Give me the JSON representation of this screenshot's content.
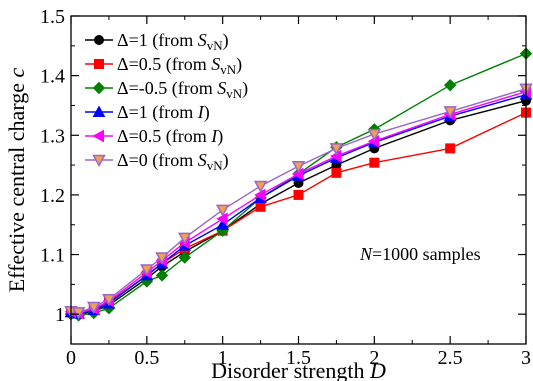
{
  "chart_data": {
    "type": "line",
    "xlabel": "Disorder strength D",
    "ylabel": "Effective central charge c",
    "xlim": [
      0,
      3
    ],
    "ylim": [
      0.95,
      1.5
    ],
    "x_ticks": [
      "0",
      "0.5",
      "1",
      "1.5",
      "2",
      "2.5",
      "3"
    ],
    "y_ticks": [
      "1",
      "1.1",
      "1.2",
      "1.3",
      "1.4",
      "1.5"
    ],
    "annotation": "N=1000 samples",
    "legend_position": "top-left",
    "grid": false,
    "series": [
      {
        "name": "Δ=1 (from SvN)",
        "color": "#000000",
        "marker": "circle",
        "x": [
          0,
          0.05,
          0.15,
          0.25,
          0.5,
          0.6,
          0.75,
          1.0,
          1.25,
          1.5,
          1.75,
          2.0,
          2.5,
          3.0
        ],
        "y": [
          1.003,
          1.0,
          1.005,
          1.015,
          1.06,
          1.08,
          1.105,
          1.14,
          1.185,
          1.22,
          1.25,
          1.278,
          1.325,
          1.358
        ]
      },
      {
        "name": "Δ=0.5 (from SvN)",
        "color": "#ff0000",
        "marker": "square",
        "x": [
          0,
          0.05,
          0.15,
          0.25,
          0.5,
          0.6,
          0.75,
          1.0,
          1.25,
          1.5,
          1.75,
          2.0,
          2.5,
          3.0
        ],
        "y": [
          1.005,
          1.002,
          1.008,
          1.02,
          1.065,
          1.085,
          1.11,
          1.14,
          1.18,
          1.2,
          1.237,
          1.254,
          1.278,
          1.338
        ]
      },
      {
        "name": "Δ=-0.5 (from SvN)",
        "color": "#008000",
        "marker": "diamond",
        "x": [
          0,
          0.05,
          0.15,
          0.25,
          0.5,
          0.6,
          0.75,
          1.0,
          1.25,
          1.5,
          1.75,
          2.0,
          2.5,
          3.0
        ],
        "y": [
          1.0,
          0.998,
          1.002,
          1.01,
          1.055,
          1.065,
          1.095,
          1.14,
          1.195,
          1.235,
          1.28,
          1.31,
          1.384,
          1.437
        ]
      },
      {
        "name": "Δ=1 (from I)",
        "color": "#0000ff",
        "marker": "triangle-up",
        "x": [
          0,
          0.05,
          0.15,
          0.25,
          0.5,
          0.6,
          0.75,
          1.0,
          1.25,
          1.5,
          1.75,
          2.0,
          2.5,
          3.0
        ],
        "y": [
          1.003,
          1.001,
          1.007,
          1.018,
          1.065,
          1.085,
          1.115,
          1.15,
          1.195,
          1.232,
          1.262,
          1.288,
          1.332,
          1.368
        ]
      },
      {
        "name": "Δ=0.5 (from I)",
        "color": "#ff00ff",
        "marker": "triangle-left",
        "x": [
          0,
          0.05,
          0.15,
          0.25,
          0.5,
          0.6,
          0.75,
          1.0,
          1.25,
          1.5,
          1.75,
          2.0,
          2.5,
          3.0
        ],
        "y": [
          1.004,
          1.002,
          1.009,
          1.022,
          1.07,
          1.09,
          1.12,
          1.16,
          1.2,
          1.235,
          1.265,
          1.29,
          1.335,
          1.373
        ]
      },
      {
        "name": "Δ=0 (from SvN)",
        "color": "#9966cc",
        "marker": "triangle-down",
        "x": [
          0,
          0.05,
          0.15,
          0.25,
          0.5,
          0.6,
          0.75,
          1.0,
          1.25,
          1.5,
          1.75,
          2.0,
          2.5,
          3.0
        ],
        "y": [
          1.005,
          1.003,
          1.012,
          1.025,
          1.075,
          1.095,
          1.128,
          1.175,
          1.215,
          1.248,
          1.278,
          1.302,
          1.34,
          1.378
        ]
      }
    ],
    "legend_labels": [
      {
        "prefix": "Δ=1 (from ",
        "sym": "S",
        "sub": "vN",
        "suffix": ")"
      },
      {
        "prefix": "Δ=0.5 (from ",
        "sym": "S",
        "sub": "vN",
        "suffix": ")"
      },
      {
        "prefix": "Δ=-0.5 (from ",
        "sym": "S",
        "sub": "vN",
        "suffix": ")"
      },
      {
        "prefix": "Δ=1 (from ",
        "sym": "I",
        "sub": "",
        "suffix": ")"
      },
      {
        "prefix": "Δ=0.5 (from ",
        "sym": "I",
        "sub": "",
        "suffix": ")"
      },
      {
        "prefix": "Δ=0 (from ",
        "sym": "S",
        "sub": "vN",
        "suffix": ")"
      }
    ]
  }
}
